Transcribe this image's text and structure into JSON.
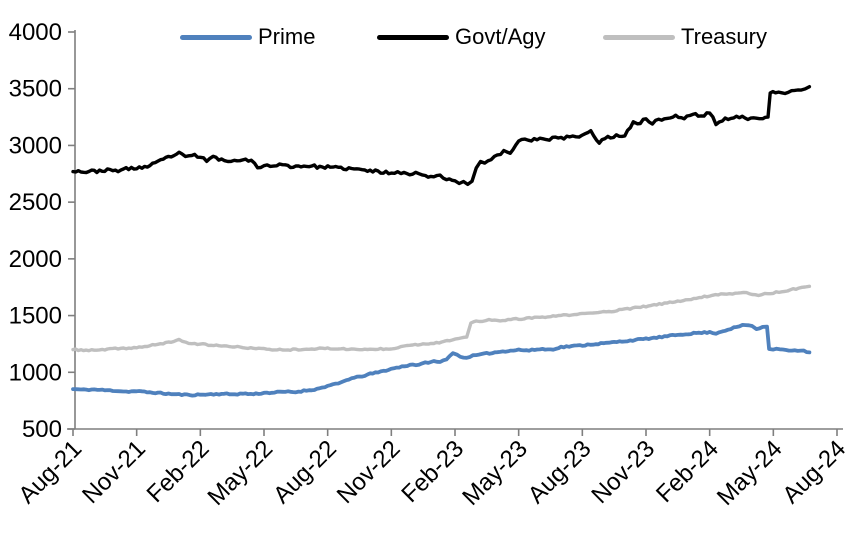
{
  "chart_data": {
    "type": "line",
    "title": "",
    "xlabel": "",
    "ylabel": "",
    "x_unit": "months since Aug-21",
    "categories": [
      "Aug-21",
      "Nov-21",
      "Feb-22",
      "May-22",
      "Aug-22",
      "Nov-22",
      "Feb-23",
      "May-23",
      "Aug-23",
      "Nov-23",
      "Feb-24",
      "May-24",
      "Aug-24"
    ],
    "category_month_positions": [
      0,
      3,
      6,
      9,
      12,
      15,
      18,
      21,
      24,
      27,
      30,
      33,
      36
    ],
    "ylim": [
      500,
      4000
    ],
    "y_tick_step": 500,
    "y_tick_labels": [
      "500",
      "1000",
      "1500",
      "2000",
      "2500",
      "3000",
      "3500",
      "4000"
    ],
    "grid": false,
    "legend_position": "top",
    "axis_color": "#7f7f7f",
    "tick_label_color": "#000000",
    "series": [
      {
        "name": "Prime",
        "color": "#4F81BD",
        "points": [
          [
            0,
            852
          ],
          [
            0.5,
            846
          ],
          [
            1,
            848
          ],
          [
            1.5,
            842
          ],
          [
            2,
            838
          ],
          [
            2.5,
            830
          ],
          [
            3,
            833
          ],
          [
            3.5,
            825
          ],
          [
            4,
            818
          ],
          [
            4.5,
            810
          ],
          [
            5,
            804
          ],
          [
            5.5,
            800
          ],
          [
            6,
            802
          ],
          [
            6.5,
            806
          ],
          [
            7,
            810
          ],
          [
            7.5,
            806
          ],
          [
            8,
            812
          ],
          [
            8.5,
            808
          ],
          [
            9,
            818
          ],
          [
            9.5,
            822
          ],
          [
            10,
            828
          ],
          [
            10.5,
            826
          ],
          [
            11,
            840
          ],
          [
            11.5,
            852
          ],
          [
            12,
            880
          ],
          [
            12.5,
            900
          ],
          [
            13,
            940
          ],
          [
            13.5,
            960
          ],
          [
            14,
            985
          ],
          [
            14.5,
            1005
          ],
          [
            15,
            1030
          ],
          [
            15.5,
            1050
          ],
          [
            16,
            1070
          ],
          [
            16.3,
            1062
          ],
          [
            16.6,
            1085
          ],
          [
            17,
            1095
          ],
          [
            17.3,
            1088
          ],
          [
            17.6,
            1120
          ],
          [
            17.9,
            1168
          ],
          [
            18.1,
            1155
          ],
          [
            18.4,
            1126
          ],
          [
            18.7,
            1140
          ],
          [
            19,
            1150
          ],
          [
            19.5,
            1165
          ],
          [
            20,
            1178
          ],
          [
            20.5,
            1190
          ],
          [
            21,
            1198
          ],
          [
            21.5,
            1192
          ],
          [
            22,
            1205
          ],
          [
            22.5,
            1200
          ],
          [
            23,
            1222
          ],
          [
            23.5,
            1230
          ],
          [
            24,
            1238
          ],
          [
            24.5,
            1248
          ],
          [
            25,
            1255
          ],
          [
            25.5,
            1265
          ],
          [
            26,
            1275
          ],
          [
            26.5,
            1285
          ],
          [
            27,
            1295
          ],
          [
            27.5,
            1305
          ],
          [
            28,
            1318
          ],
          [
            28.5,
            1330
          ],
          [
            29,
            1340
          ],
          [
            29.5,
            1348
          ],
          [
            30,
            1352
          ],
          [
            30.3,
            1345
          ],
          [
            30.6,
            1362
          ],
          [
            31,
            1385
          ],
          [
            31.4,
            1405
          ],
          [
            31.7,
            1418
          ],
          [
            32,
            1408
          ],
          [
            32.2,
            1380
          ],
          [
            32.5,
            1400
          ],
          [
            32.7,
            1402
          ],
          [
            32.8,
            1205
          ],
          [
            33,
            1200
          ],
          [
            33.3,
            1205
          ],
          [
            33.6,
            1198
          ],
          [
            34,
            1192
          ],
          [
            34.3,
            1196
          ],
          [
            34.7,
            1175
          ]
        ]
      },
      {
        "name": "Govt/Agy",
        "color": "#000000",
        "points": [
          [
            0,
            2780
          ],
          [
            0.5,
            2768
          ],
          [
            1,
            2772
          ],
          [
            1.5,
            2782
          ],
          [
            2,
            2776
          ],
          [
            2.5,
            2792
          ],
          [
            3,
            2802
          ],
          [
            3.5,
            2812
          ],
          [
            4,
            2852
          ],
          [
            4.5,
            2898
          ],
          [
            5,
            2930
          ],
          [
            5.3,
            2894
          ],
          [
            5.6,
            2916
          ],
          [
            6,
            2898
          ],
          [
            6.3,
            2868
          ],
          [
            6.6,
            2894
          ],
          [
            7,
            2878
          ],
          [
            7.3,
            2852
          ],
          [
            7.6,
            2874
          ],
          [
            8,
            2880
          ],
          [
            8.4,
            2868
          ],
          [
            8.7,
            2798
          ],
          [
            9,
            2830
          ],
          [
            9.3,
            2814
          ],
          [
            9.6,
            2832
          ],
          [
            10,
            2820
          ],
          [
            10.5,
            2814
          ],
          [
            11,
            2822
          ],
          [
            11.5,
            2812
          ],
          [
            12,
            2808
          ],
          [
            12.5,
            2800
          ],
          [
            13,
            2796
          ],
          [
            13.5,
            2786
          ],
          [
            14,
            2776
          ],
          [
            14.5,
            2766
          ],
          [
            15,
            2758
          ],
          [
            15.3,
            2774
          ],
          [
            15.6,
            2754
          ],
          [
            16,
            2744
          ],
          [
            16.3,
            2760
          ],
          [
            16.6,
            2734
          ],
          [
            17,
            2724
          ],
          [
            17.3,
            2740
          ],
          [
            17.6,
            2708
          ],
          [
            18,
            2688
          ],
          [
            18.2,
            2664
          ],
          [
            18.4,
            2682
          ],
          [
            18.6,
            2656
          ],
          [
            18.8,
            2684
          ],
          [
            19,
            2800
          ],
          [
            19.2,
            2858
          ],
          [
            19.4,
            2844
          ],
          [
            19.7,
            2884
          ],
          [
            20,
            2906
          ],
          [
            20.3,
            2948
          ],
          [
            20.6,
            2934
          ],
          [
            21,
            3040
          ],
          [
            21.3,
            3064
          ],
          [
            21.6,
            3048
          ],
          [
            22,
            3058
          ],
          [
            22.3,
            3044
          ],
          [
            22.6,
            3068
          ],
          [
            23,
            3058
          ],
          [
            23.4,
            3084
          ],
          [
            23.7,
            3068
          ],
          [
            24,
            3090
          ],
          [
            24.4,
            3120
          ],
          [
            24.8,
            3030
          ],
          [
            25.2,
            3068
          ],
          [
            25.6,
            3084
          ],
          [
            26,
            3092
          ],
          [
            26.4,
            3208
          ],
          [
            26.6,
            3180
          ],
          [
            27,
            3238
          ],
          [
            27.3,
            3196
          ],
          [
            27.6,
            3228
          ],
          [
            28,
            3240
          ],
          [
            28.4,
            3258
          ],
          [
            28.8,
            3238
          ],
          [
            29.2,
            3278
          ],
          [
            29.6,
            3258
          ],
          [
            30,
            3290
          ],
          [
            30.3,
            3192
          ],
          [
            30.6,
            3228
          ],
          [
            31,
            3234
          ],
          [
            31.4,
            3252
          ],
          [
            31.8,
            3240
          ],
          [
            32.2,
            3252
          ],
          [
            32.5,
            3244
          ],
          [
            32.75,
            3250
          ],
          [
            32.85,
            3455
          ],
          [
            33.1,
            3472
          ],
          [
            33.4,
            3452
          ],
          [
            33.7,
            3468
          ],
          [
            34,
            3478
          ],
          [
            34.3,
            3488
          ],
          [
            34.5,
            3498
          ],
          [
            34.7,
            3518
          ]
        ]
      },
      {
        "name": "Treasury",
        "color": "#BFBFBF",
        "points": [
          [
            0,
            1200
          ],
          [
            0.5,
            1195
          ],
          [
            1,
            1193
          ],
          [
            1.5,
            1200
          ],
          [
            2,
            1208
          ],
          [
            2.5,
            1212
          ],
          [
            3,
            1218
          ],
          [
            3.5,
            1228
          ],
          [
            4,
            1248
          ],
          [
            4.5,
            1262
          ],
          [
            5,
            1288
          ],
          [
            5.3,
            1262
          ],
          [
            5.6,
            1255
          ],
          [
            6,
            1248
          ],
          [
            6.5,
            1240
          ],
          [
            7,
            1232
          ],
          [
            7.5,
            1225
          ],
          [
            8,
            1220
          ],
          [
            8.5,
            1212
          ],
          [
            9,
            1205
          ],
          [
            9.5,
            1200
          ],
          [
            10,
            1198
          ],
          [
            10.5,
            1202
          ],
          [
            11,
            1205
          ],
          [
            11.5,
            1208
          ],
          [
            12,
            1210
          ],
          [
            12.5,
            1208
          ],
          [
            13,
            1204
          ],
          [
            13.5,
            1200
          ],
          [
            14,
            1202
          ],
          [
            14.5,
            1206
          ],
          [
            15,
            1210
          ],
          [
            15.3,
            1215
          ],
          [
            15.6,
            1238
          ],
          [
            16,
            1242
          ],
          [
            16.5,
            1248
          ],
          [
            17,
            1258
          ],
          [
            17.5,
            1270
          ],
          [
            18,
            1290
          ],
          [
            18.3,
            1298
          ],
          [
            18.55,
            1310
          ],
          [
            18.75,
            1438
          ],
          [
            19,
            1452
          ],
          [
            19.3,
            1448
          ],
          [
            19.6,
            1462
          ],
          [
            20,
            1455
          ],
          [
            20.5,
            1462
          ],
          [
            21,
            1470
          ],
          [
            21.5,
            1478
          ],
          [
            22,
            1482
          ],
          [
            22.5,
            1492
          ],
          [
            23,
            1500
          ],
          [
            23.5,
            1508
          ],
          [
            24,
            1515
          ],
          [
            24.5,
            1522
          ],
          [
            25,
            1532
          ],
          [
            25.5,
            1542
          ],
          [
            26,
            1555
          ],
          [
            26.5,
            1568
          ],
          [
            27,
            1582
          ],
          [
            27.5,
            1595
          ],
          [
            28,
            1612
          ],
          [
            28.5,
            1625
          ],
          [
            29,
            1642
          ],
          [
            29.5,
            1658
          ],
          [
            30,
            1675
          ],
          [
            30.4,
            1688
          ],
          [
            30.8,
            1692
          ],
          [
            31.2,
            1695
          ],
          [
            31.6,
            1702
          ],
          [
            32,
            1692
          ],
          [
            32.3,
            1678
          ],
          [
            32.6,
            1692
          ],
          [
            33,
            1700
          ],
          [
            33.4,
            1712
          ],
          [
            33.8,
            1726
          ],
          [
            34.2,
            1742
          ],
          [
            34.5,
            1752
          ],
          [
            34.7,
            1758
          ]
        ]
      }
    ]
  }
}
